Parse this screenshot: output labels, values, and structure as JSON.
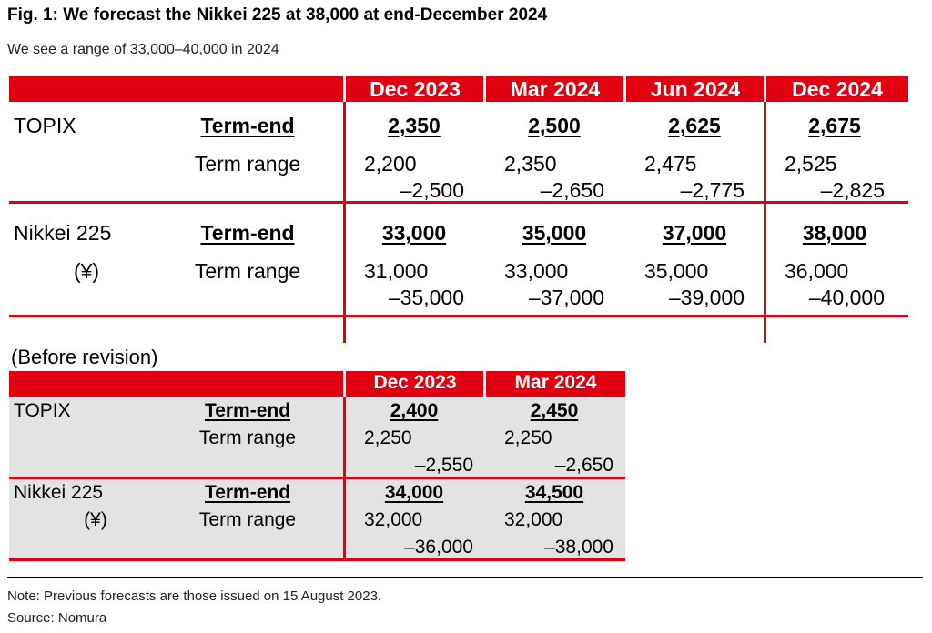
{
  "title": "Fig. 1: We forecast the Nikkei 225 at 38,000 at end-December 2024",
  "subtitle": "We see a range of 33,000–40,000 in 2024",
  "main": {
    "columns": [
      "Dec 2023",
      "Mar 2024",
      "Jun 2024",
      "Dec 2024"
    ],
    "rows": [
      {
        "name": "TOPIX",
        "unit": "",
        "term_end_label": "Term-end",
        "range_label": "Term range",
        "term_end": [
          "2,350",
          "2,500",
          "2,625",
          "2,675"
        ],
        "range_low": [
          "2,200",
          "2,350",
          "2,475",
          "2,525"
        ],
        "range_high": [
          "–2,500",
          "–2,650",
          "–2,775",
          "–2,825"
        ]
      },
      {
        "name": "Nikkei 225",
        "unit": "(¥)",
        "term_end_label": "Term-end",
        "range_label": "Term range",
        "term_end": [
          "33,000",
          "35,000",
          "37,000",
          "38,000"
        ],
        "range_low": [
          "31,000",
          "33,000",
          "35,000",
          "36,000"
        ],
        "range_high": [
          "–35,000",
          "–37,000",
          "–39,000",
          "–40,000"
        ]
      }
    ]
  },
  "before": {
    "heading": "(Before revision)",
    "columns": [
      "Dec 2023",
      "Mar 2024"
    ],
    "rows": [
      {
        "name": "TOPIX",
        "unit": "",
        "term_end_label": "Term-end",
        "range_label": "Term range",
        "term_end": [
          "2,400",
          "2,450"
        ],
        "range_low": [
          "2,250",
          "2,250"
        ],
        "range_high": [
          "–2,550",
          "–2,650"
        ]
      },
      {
        "name": "Nikkei 225",
        "unit": "(¥)",
        "term_end_label": "Term-end",
        "range_label": "Term range",
        "term_end": [
          "34,000",
          "34,500"
        ],
        "range_low": [
          "32,000",
          "32,000"
        ],
        "range_high": [
          "–36,000",
          "–38,000"
        ]
      }
    ]
  },
  "note": "Note: Previous forecasts are those issued on 15 August 2023.",
  "source": "Source: Nomura"
}
